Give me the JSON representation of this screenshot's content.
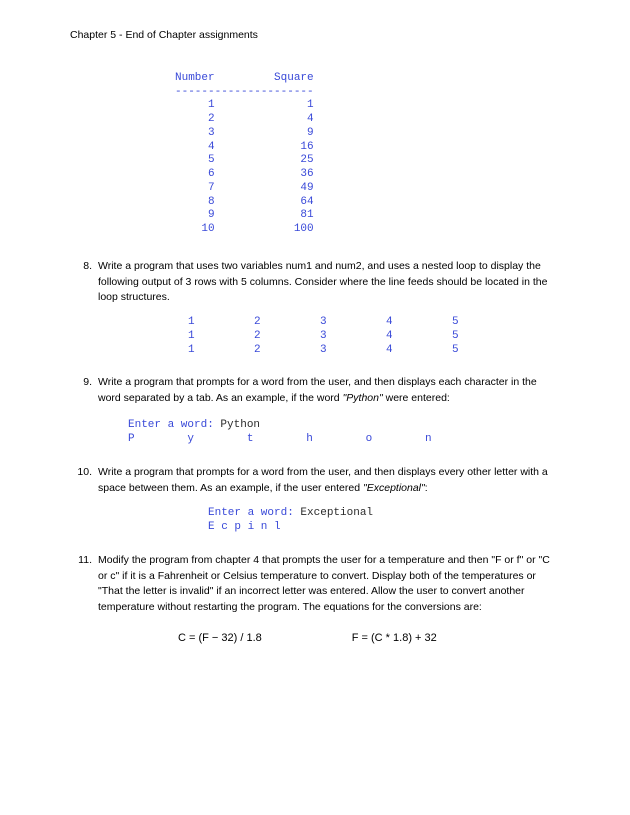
{
  "header": "Chapter 5 - End of Chapter assignments",
  "squaresTable": {
    "headerNumber": "Number",
    "headerSquare": "Square",
    "dashes": "---------------------",
    "rows": [
      {
        "n": "1",
        "sq": "1"
      },
      {
        "n": "2",
        "sq": "4"
      },
      {
        "n": "3",
        "sq": "9"
      },
      {
        "n": "4",
        "sq": "16"
      },
      {
        "n": "5",
        "sq": "25"
      },
      {
        "n": "6",
        "sq": "36"
      },
      {
        "n": "7",
        "sq": "49"
      },
      {
        "n": "8",
        "sq": "64"
      },
      {
        "n": "9",
        "sq": "81"
      },
      {
        "n": "10",
        "sq": "100"
      }
    ],
    "colNumWidth": 6,
    "gap": 9,
    "colSqWidth": 6
  },
  "q8": {
    "num": "8.",
    "text": "Write a program that uses two variables num1 and num2, and uses a nested loop to display the following output of 3 rows with 5 columns.  Consider where the line feeds should be located in the loop structures.",
    "grid": {
      "rows": [
        [
          "1",
          "2",
          "3",
          "4",
          "5"
        ],
        [
          "1",
          "2",
          "3",
          "4",
          "5"
        ],
        [
          "1",
          "2",
          "3",
          "4",
          "5"
        ]
      ],
      "colSpacing": 10
    }
  },
  "q9": {
    "num": "9.",
    "textPrefix": "Write a program that prompts for a word from the user, and then displays each character in the word separated by a tab.  As an example, if the word ",
    "italicWord": "\"Python\"",
    "textSuffix": " were entered:",
    "promptLabel": "Enter a word: ",
    "promptInput": "Python",
    "outputChars": [
      "P",
      "y",
      "t",
      "h",
      "o",
      "n"
    ],
    "charSpacing": 9
  },
  "q10": {
    "num": "10.",
    "textPrefix": "Write a program that prompts for a word from the user, and then displays every other letter with a space between them.  As an example, if the user entered ",
    "italicWord": "\"Exceptional\"",
    "textSuffix": ":",
    "promptLabel": "Enter a word: ",
    "promptInput": "Exceptional",
    "output": "E c p i n l"
  },
  "q11": {
    "num": "11.",
    "text": "Modify the program from chapter 4 that prompts the user for a temperature and then \"F or f\" or \"C or c\" if it is a Fahrenheit or Celsius temperature to convert.  Display both of the temperatures or \"That the letter is invalid\" if an incorrect letter was entered.  Allow the user to convert another temperature without restarting the program.  The equations for the conversions are:",
    "eq1": "C = (F − 32) / 1.8",
    "eq2": "F = (C * 1.8) + 32"
  },
  "colors": {
    "code": "#3949d8",
    "text": "#000000",
    "promptInput": "#2b2b2b"
  }
}
